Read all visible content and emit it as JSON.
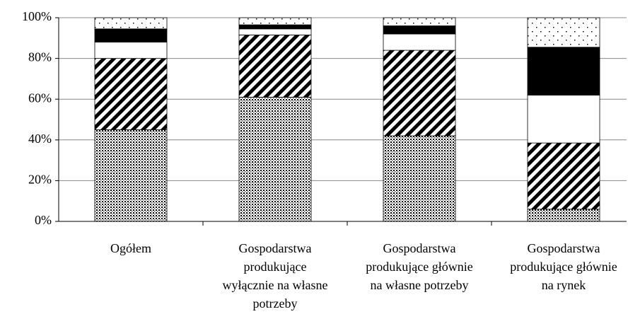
{
  "chart_data": {
    "type": "stacked-bar",
    "categories": [
      "Ogółem",
      "Gospodarstwa produkujące wyłącznie na własne potrzeby",
      "Gospodarstwa produkujące głównie na własne potrzeby",
      "Gospodarstwa produkujące głównie na rynek"
    ],
    "series": [
      {
        "pattern": "dense-dots",
        "values": [
          45,
          61,
          42,
          6
        ]
      },
      {
        "pattern": "diagonal",
        "values": [
          35,
          30.5,
          42,
          32.5
        ]
      },
      {
        "pattern": "none",
        "values": [
          8,
          3,
          8,
          23.5
        ]
      },
      {
        "pattern": "solid",
        "values": [
          6.5,
          2,
          4,
          23.5
        ]
      },
      {
        "pattern": "sparse-dots",
        "values": [
          5.5,
          3.5,
          4,
          14.5
        ]
      }
    ],
    "ylim": [
      0,
      100
    ],
    "yticks": [
      {
        "value": 0,
        "label": "0%"
      },
      {
        "value": 20,
        "label": "20%"
      },
      {
        "value": 40,
        "label": "40%"
      },
      {
        "value": 60,
        "label": "60%"
      },
      {
        "value": 80,
        "label": "80%"
      },
      {
        "value": 100,
        "label": "100%"
      }
    ],
    "grid": true
  }
}
